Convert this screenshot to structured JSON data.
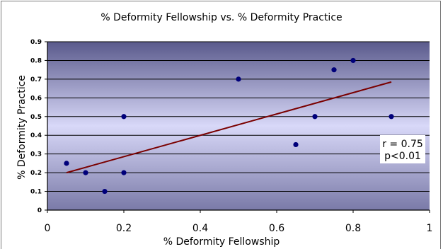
{
  "chart_data": {
    "type": "scatter",
    "title": "% Deformity Fellowship vs. % Deformity Practice",
    "xlabel": "% Deformity Fellowship",
    "ylabel": "% Deformity Practice",
    "xlim": [
      0,
      1
    ],
    "ylim": [
      0,
      0.9
    ],
    "x_ticks": [
      "0",
      "0.2",
      "0.4",
      "0.6",
      "0.8",
      "1"
    ],
    "y_ticks": [
      "0",
      "0.1",
      "0.2",
      "0.3",
      "0.4",
      "0.5",
      "0.6",
      "0.7",
      "0.8",
      "0.9"
    ],
    "x_tick_values": [
      0,
      0.2,
      0.4,
      0.6,
      0.8,
      1
    ],
    "y_tick_values": [
      0,
      0.1,
      0.2,
      0.3,
      0.4,
      0.5,
      0.6,
      0.7,
      0.8,
      0.9
    ],
    "grid": true,
    "points": [
      {
        "x": 0.05,
        "y": 0.25
      },
      {
        "x": 0.1,
        "y": 0.2
      },
      {
        "x": 0.15,
        "y": 0.1
      },
      {
        "x": 0.2,
        "y": 0.5
      },
      {
        "x": 0.2,
        "y": 0.2
      },
      {
        "x": 0.5,
        "y": 0.7
      },
      {
        "x": 0.65,
        "y": 0.35
      },
      {
        "x": 0.7,
        "y": 0.5
      },
      {
        "x": 0.75,
        "y": 0.75
      },
      {
        "x": 0.8,
        "y": 0.8
      },
      {
        "x": 0.9,
        "y": 0.5
      }
    ],
    "trendline": {
      "x": [
        0.05,
        0.9
      ],
      "y": [
        0.2,
        0.685
      ]
    },
    "annotation": {
      "line1": "r = 0.75",
      "line2": "p<0.01"
    },
    "colors": {
      "point": "#00007a",
      "trendline": "#7a0000",
      "grid": "#000000",
      "plot_bg_top": "#5a5a8c",
      "plot_bg_mid": "#d8d8f8",
      "plot_bg_bottom": "#7a7aa8"
    }
  }
}
